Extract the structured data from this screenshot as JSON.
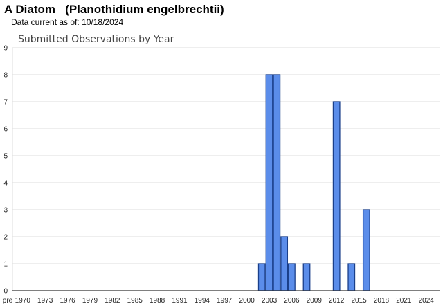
{
  "header": {
    "common_name": "A Diatom",
    "scientific_name": "(Planothidium engelbrechtii)",
    "data_current_label": "Data current as of:",
    "data_current_date": "10/18/2024"
  },
  "colors": {
    "bar_fill": "#5b8dea",
    "bar_stroke": "#1a3f8a",
    "grid": "#dddddd",
    "axis": "#333333"
  },
  "chart_data": {
    "type": "bar",
    "title": "Submitted Observations by Year",
    "xlabel": "",
    "ylabel": "",
    "ylim": [
      0,
      9
    ],
    "yticks": [
      0,
      1,
      2,
      3,
      4,
      5,
      6,
      7,
      8,
      9
    ],
    "x_tick_labels": [
      "pre",
      "1970",
      "1973",
      "1976",
      "1979",
      "1982",
      "1985",
      "1988",
      "1991",
      "1994",
      "1997",
      "2000",
      "2003",
      "2006",
      "2009",
      "2012",
      "2015",
      "2018",
      "2021",
      "2024"
    ],
    "grid": true,
    "bars": [
      {
        "year": 2002,
        "value": 1
      },
      {
        "year": 2003,
        "value": 8
      },
      {
        "year": 2004,
        "value": 8
      },
      {
        "year": 2005,
        "value": 2
      },
      {
        "year": 2006,
        "value": 1
      },
      {
        "year": 2008,
        "value": 1
      },
      {
        "year": 2012,
        "value": 7
      },
      {
        "year": 2014,
        "value": 1
      },
      {
        "year": 2016,
        "value": 3
      }
    ]
  }
}
